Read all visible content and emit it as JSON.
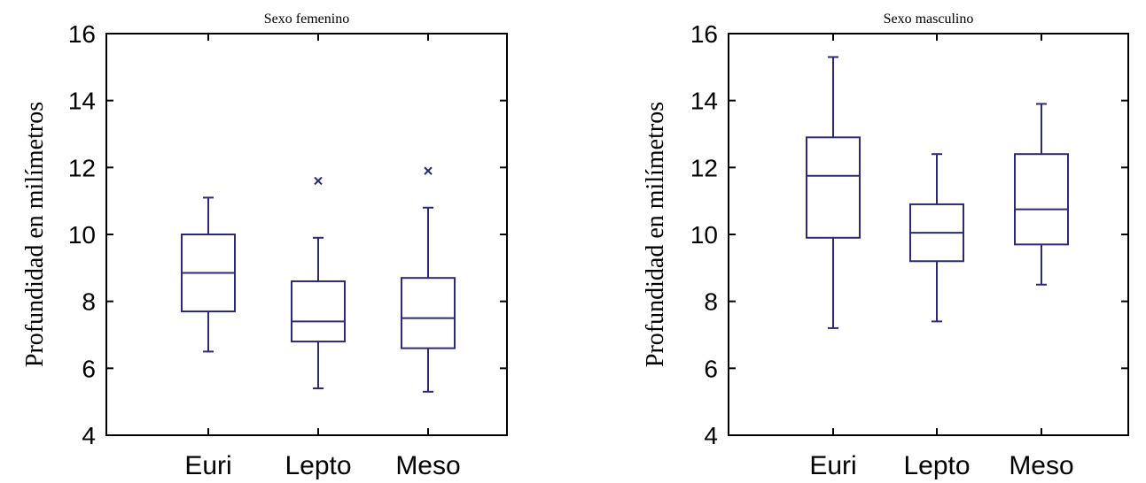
{
  "chart_data": [
    {
      "type": "box",
      "title": "Sexo femenino",
      "xlabel": "",
      "ylabel": "Profundidad en milímetros",
      "ylim": [
        4,
        16
      ],
      "yticks": [
        4,
        6,
        8,
        10,
        12,
        14,
        16
      ],
      "categories": [
        "Euri",
        "Lepto",
        "Meso"
      ],
      "color": "#2b2a7a",
      "boxes": [
        {
          "category": "Euri",
          "whisker_low": 6.5,
          "q1": 7.7,
          "median": 8.85,
          "q3": 10.0,
          "whisker_high": 11.1,
          "outliers": []
        },
        {
          "category": "Lepto",
          "whisker_low": 5.4,
          "q1": 6.8,
          "median": 7.4,
          "q3": 8.6,
          "whisker_high": 9.9,
          "outliers": [
            11.6
          ]
        },
        {
          "category": "Meso",
          "whisker_low": 5.3,
          "q1": 6.6,
          "median": 7.5,
          "q3": 8.7,
          "whisker_high": 10.8,
          "outliers": [
            11.9
          ]
        }
      ]
    },
    {
      "type": "box",
      "title": "Sexo masculino",
      "xlabel": "",
      "ylabel": "Profundidad en milímetros",
      "ylim": [
        4,
        16
      ],
      "yticks": [
        4,
        6,
        8,
        10,
        12,
        14,
        16
      ],
      "categories": [
        "Euri",
        "Lepto",
        "Meso"
      ],
      "color": "#2b2a7a",
      "boxes": [
        {
          "category": "Euri",
          "whisker_low": 7.2,
          "q1": 9.9,
          "median": 11.75,
          "q3": 12.9,
          "whisker_high": 15.3,
          "outliers": []
        },
        {
          "category": "Lepto",
          "whisker_low": 7.4,
          "q1": 9.2,
          "median": 10.05,
          "q3": 10.9,
          "whisker_high": 12.4,
          "outliers": []
        },
        {
          "category": "Meso",
          "whisker_low": 8.5,
          "q1": 9.7,
          "median": 10.75,
          "q3": 12.4,
          "whisker_high": 13.9,
          "outliers": []
        }
      ]
    }
  ]
}
